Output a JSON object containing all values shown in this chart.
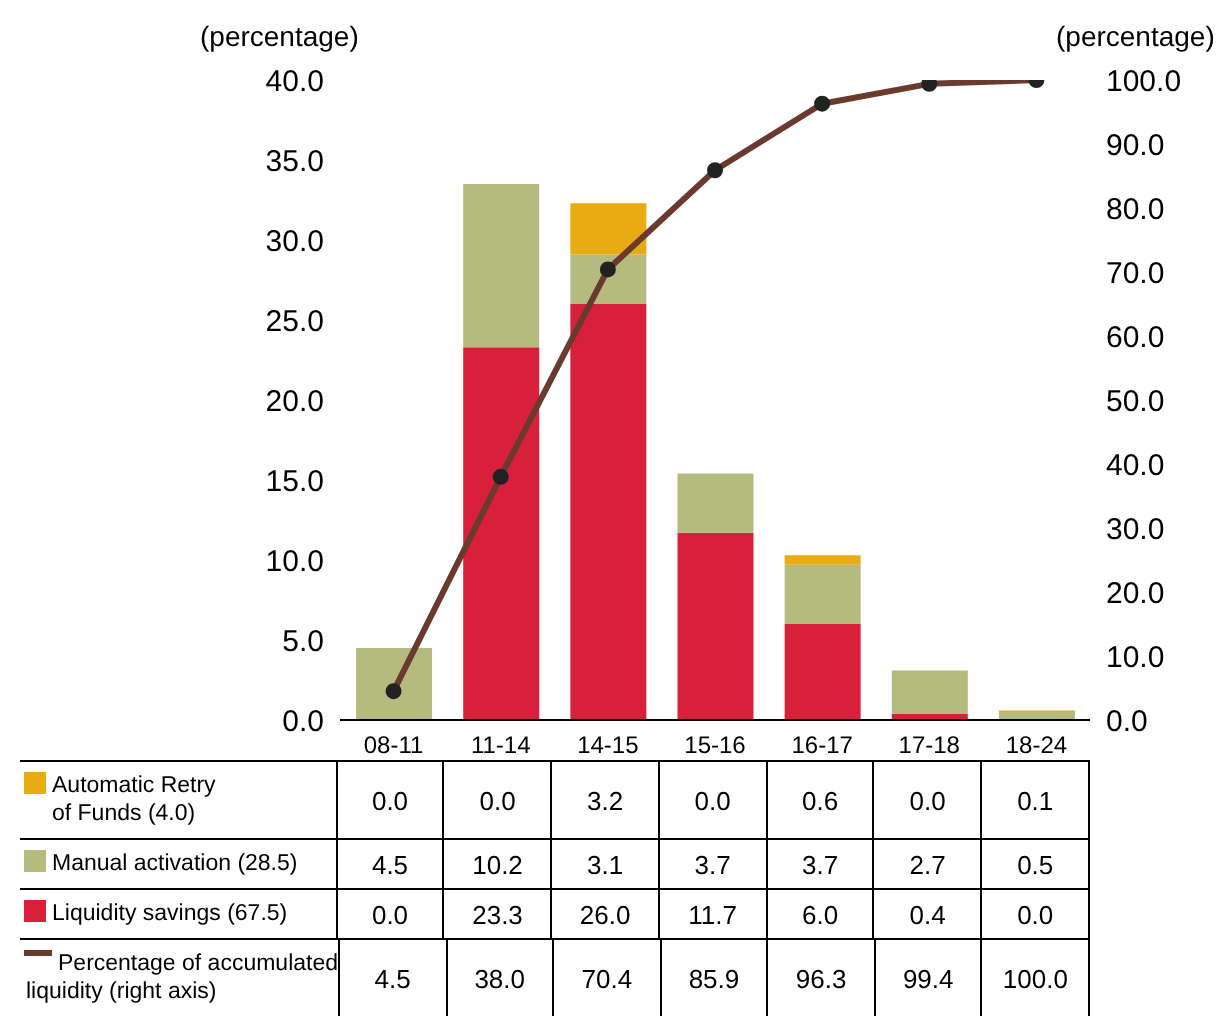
{
  "chart_data": {
    "type": "bar",
    "stacked": true,
    "ylabel": "(percentage)",
    "y2label": "(percentage)",
    "categories": [
      "08-11",
      "11-14",
      "14-15",
      "15-16",
      "16-17",
      "17-18",
      "18-24"
    ],
    "series": [
      {
        "name": "Liquidity savings (67.5)",
        "color": "#d8203a",
        "values": [
          0.0,
          23.3,
          26.0,
          11.7,
          6.0,
          0.4,
          0.0
        ],
        "value_labels": [
          "0.0",
          "23.3",
          "26.0",
          "11.7",
          "6.0",
          "0.4",
          "0.0"
        ]
      },
      {
        "name": "Manual activation (28.5)",
        "color": "#b5bb7e",
        "values": [
          4.5,
          10.2,
          3.1,
          3.7,
          3.7,
          2.7,
          0.5
        ],
        "value_labels": [
          "4.5",
          "10.2",
          "3.1",
          "3.7",
          "3.7",
          "2.7",
          "0.5"
        ]
      },
      {
        "name": "Automatic Retry\nof Funds (4.0)",
        "color": "#e8ac12",
        "values": [
          0.0,
          0.0,
          3.2,
          0.0,
          0.6,
          0.0,
          0.1
        ],
        "value_labels": [
          "0.0",
          "0.0",
          "3.2",
          "0.0",
          "0.6",
          "0.0",
          "0.1"
        ]
      },
      {
        "name": "Percentage of accumulated\nliquidity (right axis)",
        "type": "line",
        "axis": "y2",
        "color": "#6b3a2e",
        "values": [
          4.5,
          38.0,
          70.4,
          85.9,
          96.3,
          99.4,
          100.0
        ],
        "value_labels": [
          "4.5",
          "38.0",
          "70.4",
          "85.9",
          "96.3",
          "99.4",
          "100.0"
        ]
      }
    ],
    "ylim": [
      0,
      40
    ],
    "yticks": [
      {
        "value": 0,
        "label": "0.0"
      },
      {
        "value": 5,
        "label": "5.0"
      },
      {
        "value": 10,
        "label": "10.0"
      },
      {
        "value": 15,
        "label": "15.0"
      },
      {
        "value": 20,
        "label": "20.0"
      },
      {
        "value": 25,
        "label": "25.0"
      },
      {
        "value": 30,
        "label": "30.0"
      },
      {
        "value": 35,
        "label": "35.0"
      },
      {
        "value": 40,
        "label": "40.0"
      }
    ],
    "y2lim": [
      0,
      100
    ],
    "y2ticks": [
      {
        "value": 0,
        "label": "0.0"
      },
      {
        "value": 10,
        "label": "10.0"
      },
      {
        "value": 20,
        "label": "20.0"
      },
      {
        "value": 30,
        "label": "30.0"
      },
      {
        "value": 40,
        "label": "40.0"
      },
      {
        "value": 50,
        "label": "50.0"
      },
      {
        "value": 60,
        "label": "60.0"
      },
      {
        "value": 70,
        "label": "70.0"
      },
      {
        "value": 80,
        "label": "80.0"
      },
      {
        "value": 90,
        "label": "90.0"
      },
      {
        "value": 100,
        "label": "100.0"
      }
    ],
    "marker": "circle",
    "legend": "bottom",
    "grid": false
  }
}
